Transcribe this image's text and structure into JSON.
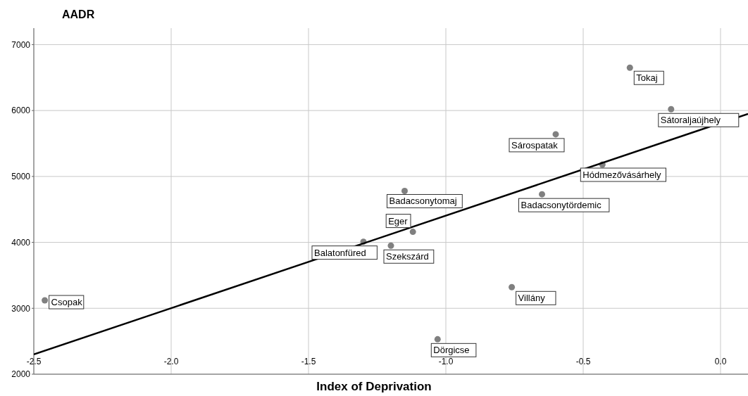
{
  "chart_data": {
    "type": "scatter",
    "ylabel": "AADR",
    "xlabel": "Index of Deprivation",
    "xlim": [
      -2.5,
      0.1
    ],
    "xticks": [
      -2.5,
      {
        "value": -2.0,
        "label": "-2.0"
      },
      -1.5,
      {
        "value": -1.0,
        "label": "-1.0"
      },
      -0.5,
      {
        "value": 0,
        "label": "0.0"
      }
    ],
    "ylim": [
      2000,
      7250
    ],
    "yticks": [
      2000,
      3000,
      4000,
      5000,
      6000,
      7000
    ],
    "grid": true,
    "marker": "circle",
    "series": [
      {
        "color": "#808080",
        "x": [
          -2.46,
          -1.3,
          -1.15,
          -1.12,
          -1.2,
          -1.03,
          -0.76,
          -0.65,
          -0.6,
          -0.43,
          -0.33,
          -0.18
        ],
        "values": [
          3120,
          4010,
          4780,
          4160,
          3950,
          2530,
          3320,
          4730,
          5640,
          5180,
          6650,
          6020
        ],
        "value_labels": [
          "Csopak",
          "Balatonfüred",
          "Badacsonytomaj",
          "Eger",
          "Szekszárd",
          "Dörgicse",
          "Villány",
          "Badacsonytördemic",
          "Sárospatak",
          "Hódmezővásárhely",
          "Tokaj",
          "Sátoraljaújhely"
        ]
      },
      {
        "type": "line",
        "marker": "none",
        "color": "#000000",
        "x": [
          -2.5,
          0.1
        ],
        "values": [
          2300,
          5950
        ]
      }
    ]
  }
}
